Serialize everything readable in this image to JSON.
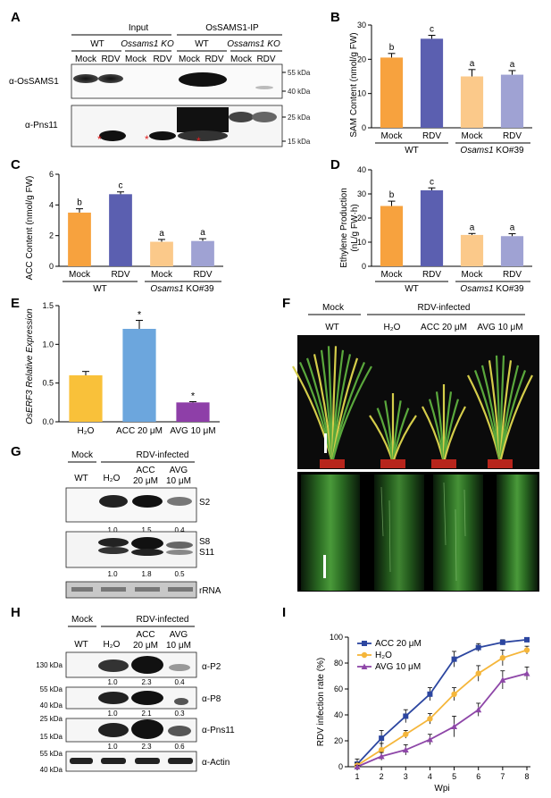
{
  "panel_letters": [
    "A",
    "B",
    "C",
    "D",
    "E",
    "F",
    "G",
    "H",
    "I"
  ],
  "panelA": {
    "headers": {
      "input": "Input",
      "ip": "OsSAMS1-IP"
    },
    "groups": [
      "WT",
      "Ossams1 KO",
      "WT",
      "Ossams1 KO"
    ],
    "lanes": [
      "Mock",
      "RDV",
      "Mock",
      "RDV",
      "Mock",
      "RDV",
      "Mock",
      "RDV"
    ],
    "blot_labels": [
      "α-OsSAMS1",
      "α-Pns11"
    ],
    "markers": [
      "55 kDa",
      "40 kDa",
      "25 kDa",
      "15 kDa"
    ],
    "star": "*"
  },
  "panelB": {
    "ylabel": "SAM Content (nmol/g FW)",
    "categories": [
      "Mock",
      "RDV",
      "Mock",
      "RDV"
    ],
    "groups": [
      "WT",
      "Osams1 KO#39"
    ],
    "letters": [
      "b",
      "c",
      "a",
      "a"
    ]
  },
  "panelC": {
    "ylabel": "ACC Content (nmol/g FW)",
    "categories": [
      "Mock",
      "RDV",
      "Mock",
      "RDV"
    ],
    "groups": [
      "WT",
      "Osams1 KO#39"
    ],
    "letters": [
      "b",
      "c",
      "a",
      "a"
    ],
    "yticks": [
      "0",
      "2",
      "4",
      "6"
    ]
  },
  "panelD": {
    "ylabel1": "Ethylene Production",
    "ylabel2": "(nL/g FW·h)",
    "categories": [
      "Mock",
      "RDV",
      "Mock",
      "RDV"
    ],
    "groups": [
      "WT",
      "Osams1 KO#39"
    ],
    "letters": [
      "b",
      "c",
      "a",
      "a"
    ]
  },
  "panelE": {
    "ylabel": "OsERF3 Relative Expression",
    "categories": [
      "H₂O",
      "ACC 20 μM",
      "AVG 10 μM"
    ],
    "yticks": [
      "0.0",
      "0.5",
      "1.0",
      "1.5"
    ],
    "stars": [
      "*",
      "*"
    ]
  },
  "panelF": {
    "header_mock": "Mock",
    "header_rdv": "RDV-infected",
    "columns": [
      "WT",
      "H₂O",
      "ACC 20 μM",
      "AVG 10 μM"
    ]
  },
  "panelG": {
    "header_mock": "Mock",
    "header_rdv": "RDV-infected",
    "lanes": [
      "WT",
      "H₂O",
      "ACC",
      "20 μM",
      "AVG",
      "10 μM"
    ],
    "band_labels": [
      "S2",
      "S8",
      "S11",
      "rRNA"
    ],
    "quant1": [
      "1.0",
      "1.5",
      "0.4"
    ],
    "quant2": [
      "1.0",
      "1.8",
      "0.5"
    ]
  },
  "panelH": {
    "header_mock": "Mock",
    "header_rdv": "RDV-infected",
    "lanes": [
      "WT",
      "H₂O",
      "ACC",
      "20 μM",
      "AVG",
      "10 μM"
    ],
    "blot_labels": [
      "α-P2",
      "α-P8",
      "α-Pns11",
      "α-Actin"
    ],
    "markers": [
      "130 kDa",
      "55 kDa",
      "40 kDa",
      "25 kDa",
      "15 kDa",
      "55 kDa",
      "40 kDa"
    ],
    "quant_p2": [
      "1.0",
      "2.3",
      "0.4"
    ],
    "quant_p8": [
      "1.0",
      "2.1",
      "0.3"
    ],
    "quant_pns11": [
      "1.0",
      "2.3",
      "0.6"
    ]
  },
  "colors": {
    "wt_mock": "#F7A23E",
    "wt_rdv": "#5B5FB0",
    "ko_mock": "#FBC98A",
    "ko_rdv": "#9FA2D3",
    "e_h2o": "#F9C13A",
    "e_acc": "#6CA6DD",
    "e_avg": "#8E3FA8",
    "acc_line": "#2C46A0",
    "h2o_line": "#F5B63A",
    "avg_line": "#8E47A8"
  },
  "chart_data": [
    {
      "type": "bar",
      "title": "",
      "xlabel": "",
      "ylabel": "SAM Content (nmol/g FW)",
      "categories": [
        "WT Mock",
        "WT RDV",
        "Osams1 KO#39 Mock",
        "Osams1 KO#39 RDV"
      ],
      "values": [
        20.5,
        26.0,
        15.0,
        15.5
      ],
      "errors": [
        1.2,
        1.0,
        2.0,
        1.2
      ],
      "ylim": [
        0,
        30
      ]
    },
    {
      "type": "bar",
      "title": "",
      "xlabel": "",
      "ylabel": "ACC Content (nmol/g FW)",
      "categories": [
        "WT Mock",
        "WT RDV",
        "Osams1 KO#39 Mock",
        "Osams1 KO#39 RDV"
      ],
      "values": [
        3.5,
        4.7,
        1.6,
        1.65
      ],
      "errors": [
        0.25,
        0.15,
        0.15,
        0.15
      ],
      "ylim": [
        0,
        6
      ]
    },
    {
      "type": "bar",
      "title": "",
      "xlabel": "",
      "ylabel": "Ethylene Production (nL/g FW·h)",
      "categories": [
        "WT Mock",
        "WT RDV",
        "Osams1 KO#39 Mock",
        "Osams1 KO#39 RDV"
      ],
      "values": [
        25.0,
        31.5,
        13.0,
        12.5
      ],
      "errors": [
        2.0,
        1.0,
        0.6,
        1.0
      ],
      "ylim": [
        0,
        40
      ]
    },
    {
      "type": "bar",
      "title": "",
      "xlabel": "",
      "ylabel": "OsERF3 Relative Expression",
      "categories": [
        "H₂O",
        "ACC 20 μM",
        "AVG 10 μM"
      ],
      "values": [
        0.6,
        1.2,
        0.25
      ],
      "errors": [
        0.05,
        0.11,
        0.01
      ],
      "ylim": [
        0,
        1.5
      ]
    },
    {
      "type": "line",
      "title": "",
      "xlabel": "Wpi",
      "ylabel": "RDV infection rate (%)",
      "x": [
        1,
        2,
        3,
        4,
        5,
        6,
        7,
        8
      ],
      "x_ticks": [
        "1",
        "2",
        "3",
        "4",
        "5",
        "6",
        "7",
        "8"
      ],
      "y_ticks": [
        "0",
        "20",
        "40",
        "60",
        "80",
        "100"
      ],
      "ylim": [
        0,
        100
      ],
      "legend": "top-left",
      "series": [
        {
          "name": "ACC 20 μM",
          "values": [
            2,
            22,
            39,
            56,
            83,
            92,
            96,
            98
          ],
          "errors": [
            4,
            6,
            5,
            5,
            6,
            3,
            2,
            1
          ]
        },
        {
          "name": "H₂O",
          "values": [
            1,
            13,
            25,
            37,
            56,
            72,
            84,
            90
          ],
          "errors": [
            2,
            5,
            3,
            4,
            5,
            6,
            6,
            3
          ]
        },
        {
          "name": "AVG 10 μM",
          "values": [
            0,
            8,
            13,
            21,
            31,
            44,
            67,
            72
          ],
          "errors": [
            1,
            3,
            4,
            4,
            8,
            5,
            7,
            5
          ]
        }
      ]
    }
  ]
}
